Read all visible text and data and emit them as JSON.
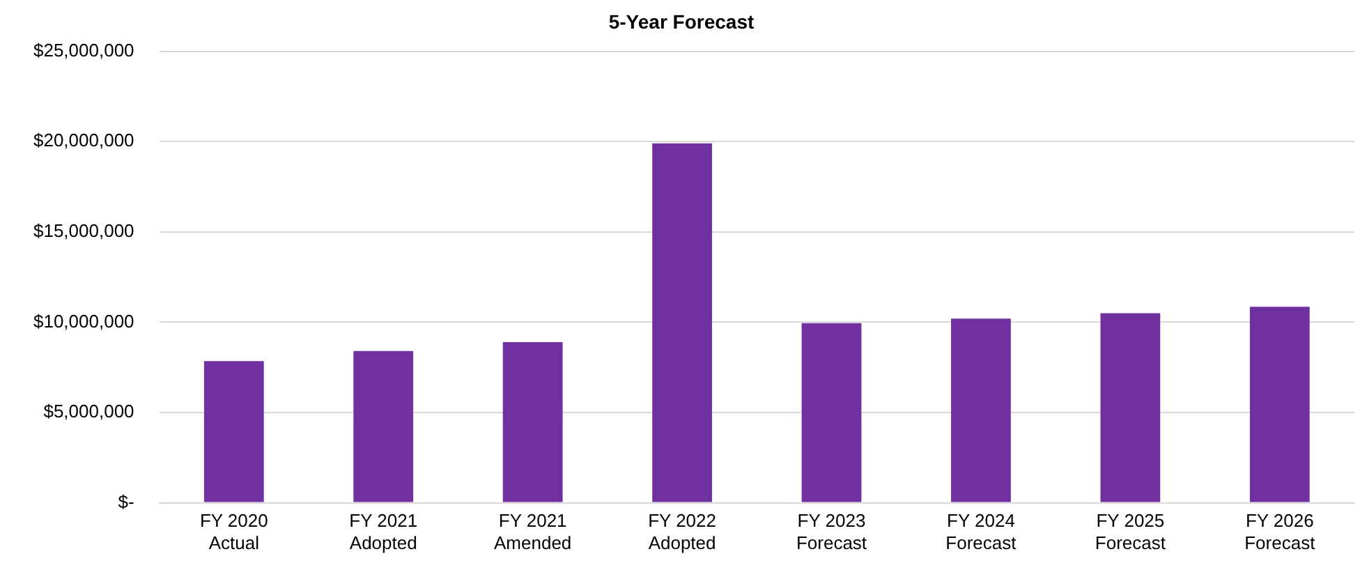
{
  "chart_data": {
    "type": "bar",
    "title": "5-Year Forecast",
    "categories": [
      "FY 2020\nActual",
      "FY 2021\nAdopted",
      "FY 2021\nAmended",
      "FY 2022\nAdopted",
      "FY 2023\nForecast",
      "FY 2024\nForecast",
      "FY 2025\nForecast",
      "FY 2026\nForecast"
    ],
    "values": [
      7850000,
      8400000,
      8900000,
      19900000,
      9950000,
      10200000,
      10500000,
      10850000
    ],
    "color": "#7030a0",
    "ylim": [
      0,
      25000000
    ],
    "yticks": [
      {
        "value": 0,
        "label": "$-"
      },
      {
        "value": 5000000,
        "label": "$5,000,000"
      },
      {
        "value": 10000000,
        "label": "$10,000,000"
      },
      {
        "value": 15000000,
        "label": "$15,000,000"
      },
      {
        "value": 20000000,
        "label": "$20,000,000"
      },
      {
        "value": 25000000,
        "label": "$25,000,000"
      }
    ],
    "grid": "y",
    "legend": false
  }
}
